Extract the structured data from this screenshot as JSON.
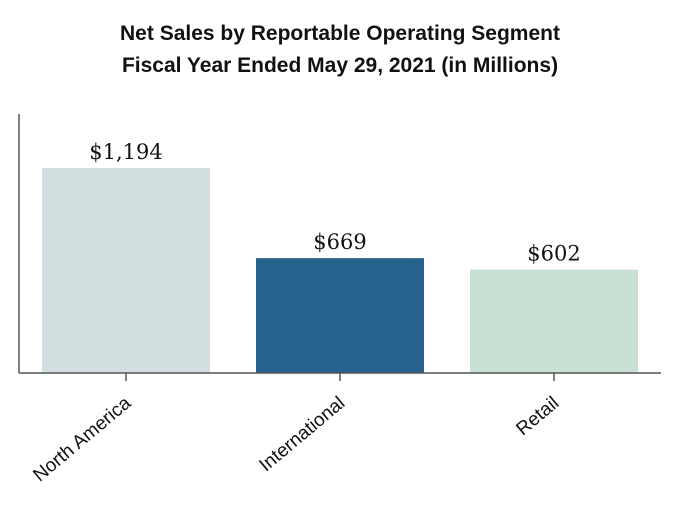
{
  "chart_data": {
    "type": "bar",
    "title": [
      "Net Sales by Reportable Operating Segment",
      "Fiscal Year Ended May 29, 2021 (in Millions)"
    ],
    "categories": [
      "North America",
      "International",
      "Retail"
    ],
    "values": [
      1194,
      669,
      602
    ],
    "value_labels": [
      "$1,194",
      "$669",
      "$602"
    ],
    "colors": [
      "#d3dee0",
      "#27618e",
      "#c9e0d5"
    ],
    "xlabel": "",
    "ylabel": "",
    "ylim": [
      0,
      1400
    ],
    "grid": false,
    "legend": "none"
  }
}
